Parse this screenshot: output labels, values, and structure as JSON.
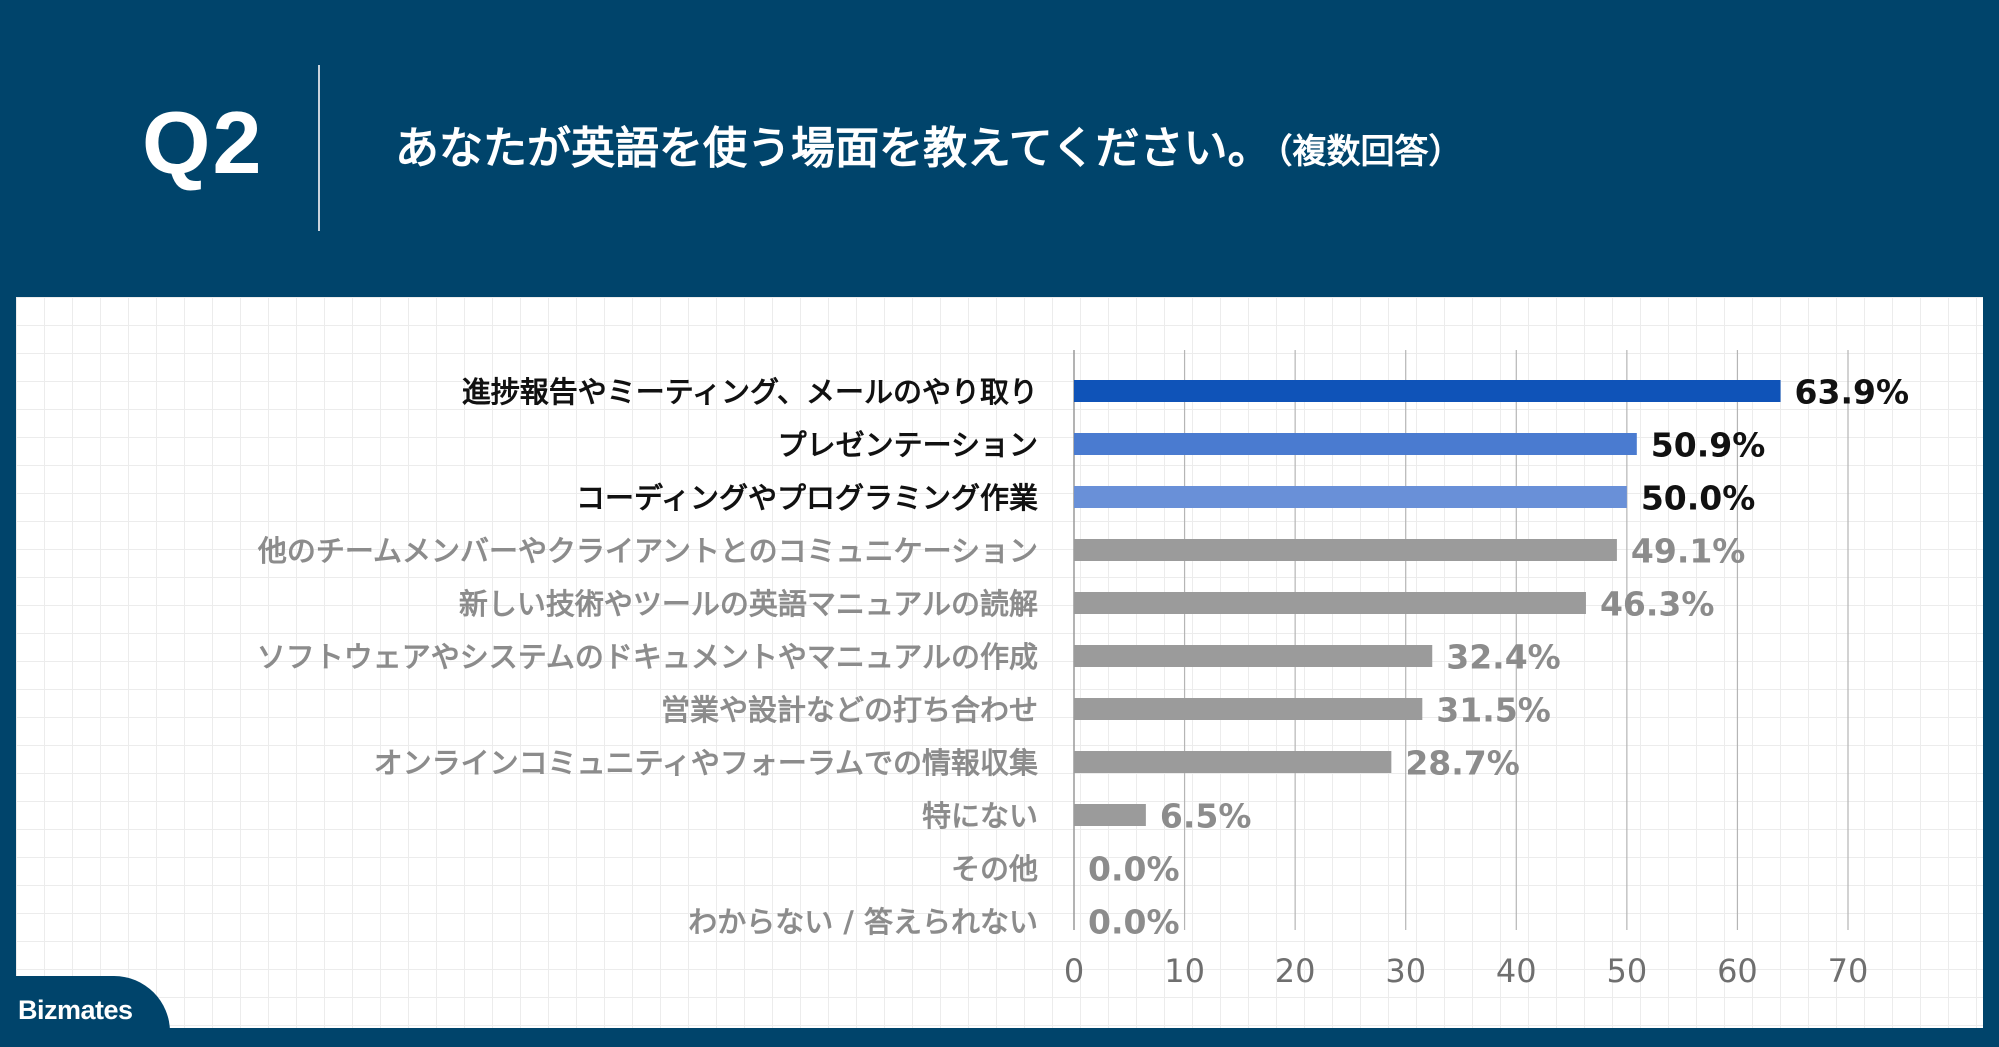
{
  "header": {
    "question_number": "Q2",
    "title": "あなたが英語を使う場面を教えてください。",
    "title_note": "（複数回答）"
  },
  "brand": {
    "logo_text": "Bizmates"
  },
  "colors": {
    "background": "#00446b",
    "bar_top1": "#0f53b8",
    "bar_top2": "#4a7bd0",
    "bar_top3": "#6990d8",
    "bar_other": "#9b9b9b",
    "label_highlight": "#111111",
    "label_other": "#8c8c8c"
  },
  "chart_data": {
    "type": "bar",
    "orientation": "horizontal",
    "unit": "%",
    "categories": [
      "進捗報告やミーティング、メールのやり取り",
      "プレゼンテーション",
      "コーディングやプログラミング作業",
      "他のチームメンバーやクライアントとのコミュニケーション",
      "新しい技術やツールの英語マニュアルの読解",
      "ソフトウェアやシステムのドキュメントやマニュアルの作成",
      "営業や設計などの打ち合わせ",
      "オンラインコミュニティやフォーラムでの情報収集",
      "特にない",
      "その他",
      "わからない / 答えられない"
    ],
    "values": [
      63.9,
      50.9,
      50.0,
      49.1,
      46.3,
      32.4,
      31.5,
      28.7,
      6.5,
      0.0,
      0.0
    ],
    "value_labels": [
      "63.9%",
      "50.9%",
      "50.0%",
      "49.1%",
      "46.3%",
      "32.4%",
      "31.5%",
      "28.7%",
      "6.5%",
      "0.0%",
      "0.0%"
    ],
    "xlim": [
      0,
      70
    ],
    "xticks": [
      "0",
      "10",
      "20",
      "30",
      "40",
      "50",
      "60",
      "70"
    ],
    "highlight_count": 3,
    "grid": true,
    "title": "",
    "xlabel": "",
    "ylabel": ""
  }
}
